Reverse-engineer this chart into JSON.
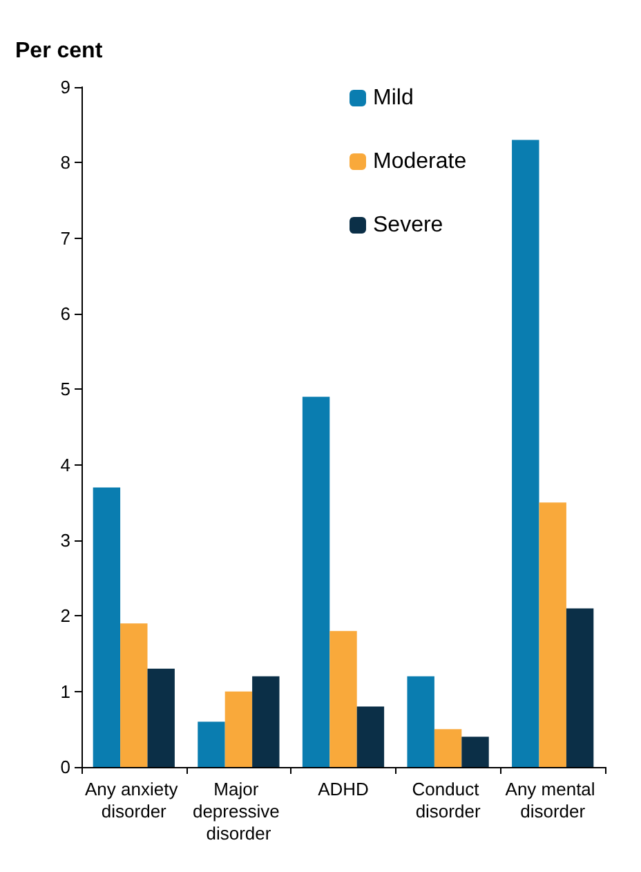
{
  "chart_data": {
    "type": "bar",
    "ylabel": "Per cent",
    "categories": [
      "Any anxiety disorder",
      "Major depressive disorder",
      "ADHD",
      "Conduct disorder",
      "Any mental disorder"
    ],
    "series": [
      {
        "name": "Mild",
        "color": "#0a7db0",
        "values": [
          3.7,
          0.6,
          4.9,
          1.2,
          8.3
        ]
      },
      {
        "name": "Moderate",
        "color": "#f9a93b",
        "values": [
          1.9,
          1.0,
          1.8,
          0.5,
          3.5
        ]
      },
      {
        "name": "Severe",
        "color": "#0b2f47",
        "values": [
          1.3,
          1.2,
          0.8,
          0.4,
          2.1
        ]
      }
    ],
    "ylim": [
      0,
      9
    ],
    "yticks": [
      0,
      1,
      2,
      3,
      4,
      5,
      6,
      7,
      8,
      9
    ],
    "grid": false,
    "legend": "top"
  }
}
